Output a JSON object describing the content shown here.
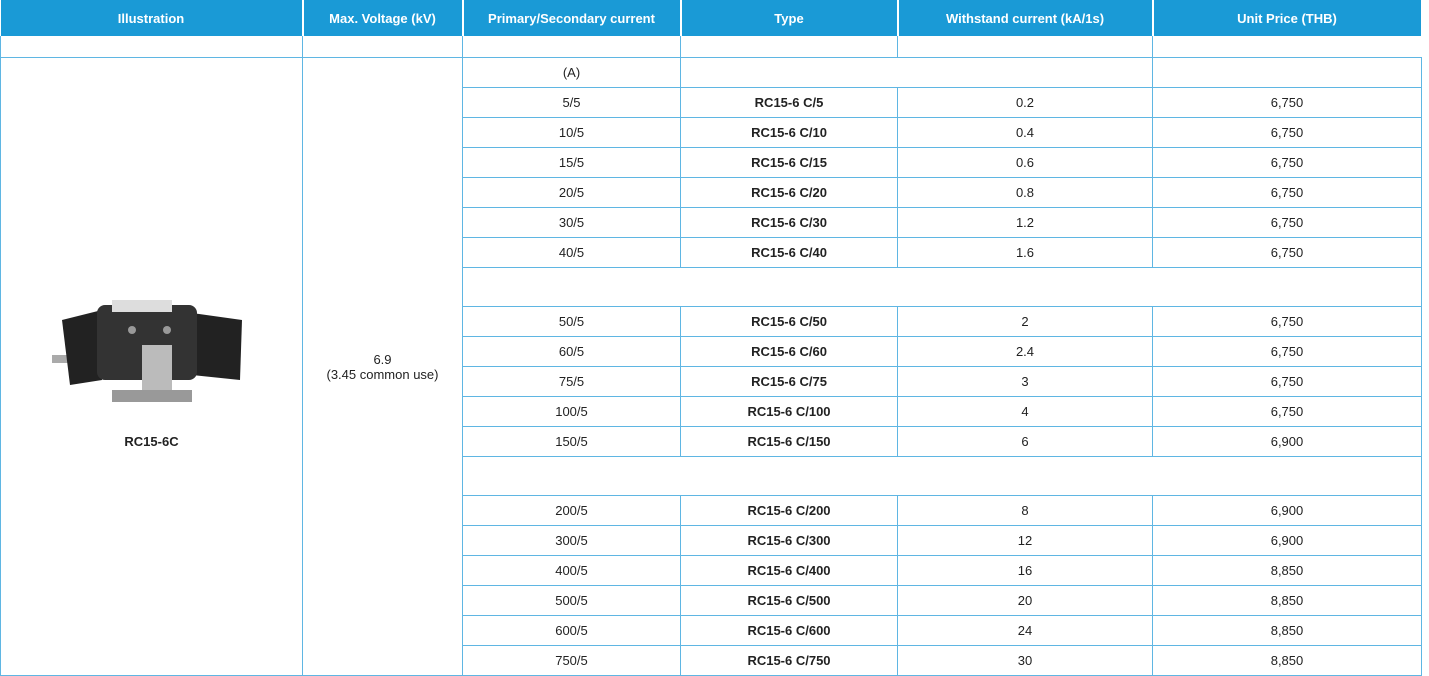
{
  "table": {
    "headers": [
      "Illustration",
      "Max. Voltage (kV)",
      "Primary/Secondary current",
      "Type",
      "Withstand current (kA/1s)",
      "Unit Price (THB)"
    ],
    "model": "RC15-6C",
    "voltage": "6.9",
    "voltage_note": "(3.45 common use)",
    "unit": "(A)",
    "groups": [
      [
        [
          "5/5",
          "RC15-6 C/5",
          "0.2",
          "6,750"
        ],
        [
          "10/5",
          "RC15-6 C/10",
          "0.4",
          "6,750"
        ],
        [
          "15/5",
          "RC15-6 C/15",
          "0.6",
          "6,750"
        ],
        [
          "20/5",
          "RC15-6 C/20",
          "0.8",
          "6,750"
        ],
        [
          "30/5",
          "RC15-6 C/30",
          "1.2",
          "6,750"
        ],
        [
          "40/5",
          "RC15-6 C/40",
          "1.6",
          "6,750"
        ]
      ],
      [
        [
          "50/5",
          "RC15-6 C/50",
          "2",
          "6,750"
        ],
        [
          "60/5",
          "RC15-6 C/60",
          "2.4",
          "6,750"
        ],
        [
          "75/5",
          "RC15-6 C/75",
          "3",
          "6,750"
        ],
        [
          "100/5",
          "RC15-6 C/100",
          "4",
          "6,750"
        ],
        [
          "150/5",
          "RC15-6 C/150",
          "6",
          "6,900"
        ]
      ],
      [
        [
          "200/5",
          "RC15-6 C/200",
          "8",
          "6,900"
        ],
        [
          "300/5",
          "RC15-6 C/300",
          "12",
          "6,900"
        ],
        [
          "400/5",
          "RC15-6 C/400",
          "16",
          "8,850"
        ],
        [
          "500/5",
          "RC15-6 C/500",
          "20",
          "8,850"
        ],
        [
          "600/5",
          "RC15-6 C/600",
          "24",
          "8,850"
        ],
        [
          "750/5",
          "RC15-6 C/750",
          "30",
          "8,850"
        ]
      ]
    ]
  }
}
